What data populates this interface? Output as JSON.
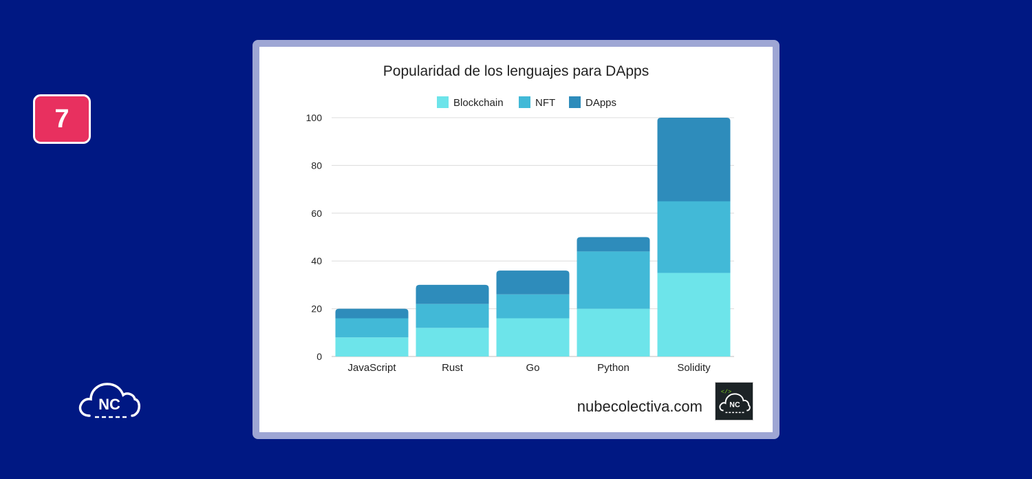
{
  "badge": {
    "number": "7"
  },
  "brand": {
    "logo_text": "NC"
  },
  "footer": {
    "site": "nubecolectiva.com",
    "logo_text": "NC",
    "logo_code": "</>"
  },
  "colors": {
    "blockchain": "#6de4ea",
    "nft": "#42b9d7",
    "dapps": "#2e8cbb",
    "grid": "#dcdcdc",
    "text": "#222222"
  },
  "chart_data": {
    "type": "bar",
    "stacked": true,
    "title": "Popularidad de los lenguajes para DApps",
    "xlabel": "",
    "ylabel": "",
    "ylim": [
      0,
      100
    ],
    "yticks": [
      0,
      20,
      40,
      60,
      80,
      100
    ],
    "grid": true,
    "legend_position": "top",
    "categories": [
      "JavaScript",
      "Rust",
      "Go",
      "Python",
      "Solidity"
    ],
    "series": [
      {
        "name": "Blockchain",
        "color": "#6de4ea",
        "values": [
          8,
          12,
          16,
          20,
          35
        ]
      },
      {
        "name": "NFT",
        "color": "#42b9d7",
        "values": [
          8,
          10,
          10,
          24,
          30
        ]
      },
      {
        "name": "DApps",
        "color": "#2e8cbb",
        "values": [
          4,
          8,
          10,
          6,
          35
        ]
      }
    ]
  }
}
